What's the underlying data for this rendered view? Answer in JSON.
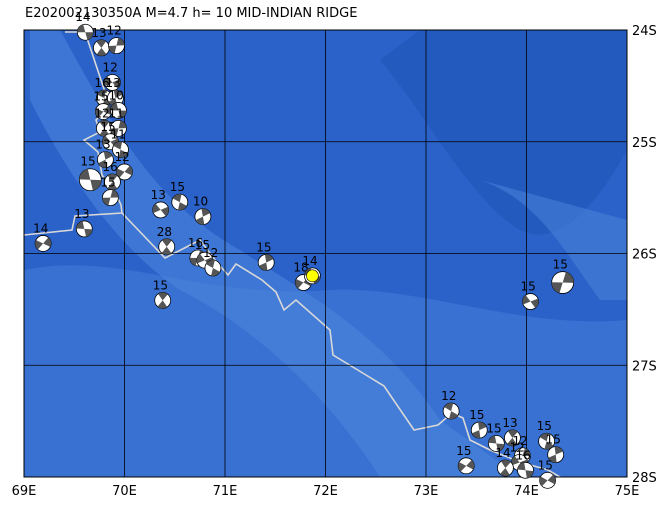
{
  "map": {
    "title": "E202002130350A M=4.7 h= 10 MID-INDIAN RIDGE",
    "xlim": [
      69,
      75
    ],
    "ylim": [
      -28,
      -24
    ],
    "xticks": [
      {
        "value": 69,
        "label": "69E"
      },
      {
        "value": 70,
        "label": "70E"
      },
      {
        "value": 71,
        "label": "71E"
      },
      {
        "value": 72,
        "label": "72E"
      },
      {
        "value": 73,
        "label": "73E"
      },
      {
        "value": 74,
        "label": "74E"
      },
      {
        "value": 75,
        "label": "75E"
      }
    ],
    "yticks": [
      {
        "value": -24,
        "label": "24S"
      },
      {
        "value": -25,
        "label": "25S"
      },
      {
        "value": -26,
        "label": "26S"
      },
      {
        "value": -27,
        "label": "27S"
      },
      {
        "value": -28,
        "label": "28S"
      }
    ],
    "main_event": 28,
    "events": [
      {
        "lon": 69.61,
        "lat": -24.02,
        "depth": 14
      },
      {
        "lon": 69.77,
        "lat": -24.16,
        "depth": 13
      },
      {
        "lon": 69.92,
        "lat": -24.14,
        "depth": 12
      },
      {
        "lon": 69.88,
        "lat": -24.47,
        "depth": 12
      },
      {
        "lon": 69.8,
        "lat": -24.61,
        "depth": 16
      },
      {
        "lon": 69.91,
        "lat": -24.61,
        "depth": 13
      },
      {
        "lon": 69.79,
        "lat": -24.73,
        "depth": 15
      },
      {
        "lon": 69.94,
        "lat": -24.72,
        "depth": 10
      },
      {
        "lon": 69.8,
        "lat": -24.88,
        "depth": 12
      },
      {
        "lon": 69.94,
        "lat": -24.88,
        "depth": 11
      },
      {
        "lon": 69.86,
        "lat": -25.0,
        "depth": 15
      },
      {
        "lon": 69.96,
        "lat": -25.07,
        "depth": 11
      },
      {
        "lon": 69.81,
        "lat": -25.16,
        "depth": 13
      },
      {
        "lon": 70.0,
        "lat": -25.27,
        "depth": 12
      },
      {
        "lon": 69.66,
        "lat": -25.34,
        "depth": 15
      },
      {
        "lon": 69.88,
        "lat": -25.36,
        "depth": 16
      },
      {
        "lon": 69.86,
        "lat": -25.5,
        "depth": 15
      },
      {
        "lon": 70.36,
        "lat": -25.61,
        "depth": 13
      },
      {
        "lon": 70.55,
        "lat": -25.54,
        "depth": 15
      },
      {
        "lon": 70.78,
        "lat": -25.67,
        "depth": 10
      },
      {
        "lon": 69.19,
        "lat": -25.91,
        "depth": 14
      },
      {
        "lon": 69.6,
        "lat": -25.78,
        "depth": 13
      },
      {
        "lon": 70.42,
        "lat": -25.94,
        "depth": 28
      },
      {
        "lon": 70.73,
        "lat": -26.04,
        "depth": 16
      },
      {
        "lon": 70.8,
        "lat": -26.06,
        "depth": 15
      },
      {
        "lon": 70.88,
        "lat": -26.13,
        "depth": 12
      },
      {
        "lon": 71.41,
        "lat": -26.08,
        "depth": 15
      },
      {
        "lon": 71.78,
        "lat": -26.26,
        "depth": 18
      },
      {
        "lon": 71.87,
        "lat": -26.2,
        "depth": 14
      },
      {
        "lon": 70.38,
        "lat": -26.42,
        "depth": 15
      },
      {
        "lon": 74.36,
        "lat": -26.26,
        "depth": 15
      },
      {
        "lon": 74.04,
        "lat": -26.43,
        "depth": 15
      },
      {
        "lon": 73.25,
        "lat": -27.41,
        "depth": 12
      },
      {
        "lon": 73.53,
        "lat": -27.58,
        "depth": 15
      },
      {
        "lon": 73.4,
        "lat": -27.9,
        "depth": 15
      },
      {
        "lon": 73.7,
        "lat": -27.7,
        "depth": 15
      },
      {
        "lon": 73.86,
        "lat": -27.65,
        "depth": 13
      },
      {
        "lon": 73.96,
        "lat": -27.81,
        "depth": 12
      },
      {
        "lon": 73.93,
        "lat": -27.87,
        "depth": 12
      },
      {
        "lon": 74.2,
        "lat": -27.68,
        "depth": 15
      },
      {
        "lon": 74.29,
        "lat": -27.8,
        "depth": 15
      },
      {
        "lon": 74.21,
        "lat": -28.03,
        "depth": 15
      },
      {
        "lon": 73.99,
        "lat": -27.94,
        "depth": 16
      },
      {
        "lon": 73.79,
        "lat": -27.92,
        "depth": 14
      }
    ]
  }
}
